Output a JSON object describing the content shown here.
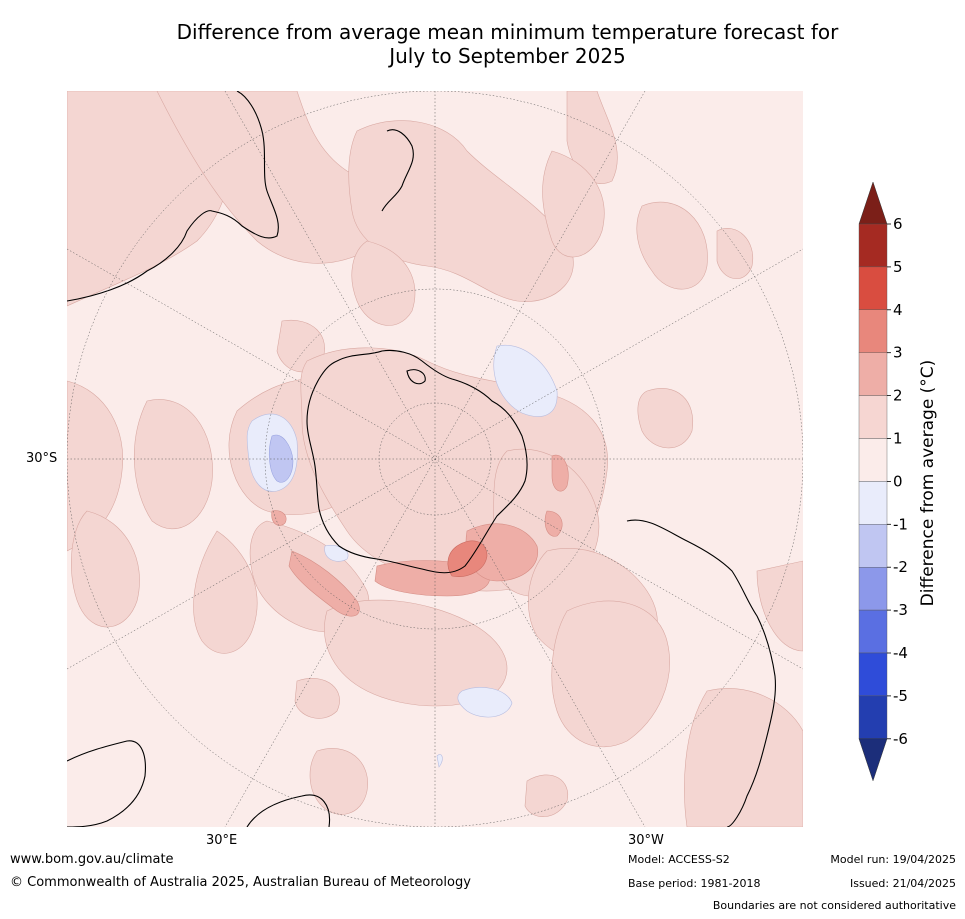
{
  "title_line1": "Difference from average mean minimum temperature forecast for",
  "title_line2": "July to September 2025",
  "labels": {
    "lat_30s": "30°S",
    "lon_30e": "30°E",
    "lon_30w": "30°W"
  },
  "colorbar": {
    "label": "Difference from average (°C)",
    "ticks": [
      "6",
      "5",
      "4",
      "3",
      "2",
      "1",
      "0",
      "-1",
      "-2",
      "-3",
      "-4",
      "-5",
      "-6"
    ],
    "colors": [
      "#7b1f18",
      "#a52a22",
      "#d94d40",
      "#e8877c",
      "#eeaea7",
      "#f6d6d2",
      "#fbecea",
      "#e9ecfb",
      "#c0c6f2",
      "#8c98ea",
      "#5a6fe2",
      "#2f4cd9",
      "#233eb0",
      "#1c2e7a"
    ]
  },
  "footer": {
    "url": "www.bom.gov.au/climate",
    "copyright": "© Commonwealth of Australia 2025, Australian Bureau of Meteorology",
    "model": "Model: ACCESS-S2",
    "base_period": "Base period: 1981-2018",
    "model_run": "Model run: 19/04/2025",
    "issued": "Issued: 21/04/2025",
    "disclaimer": "Boundaries are not considered authoritative"
  }
}
